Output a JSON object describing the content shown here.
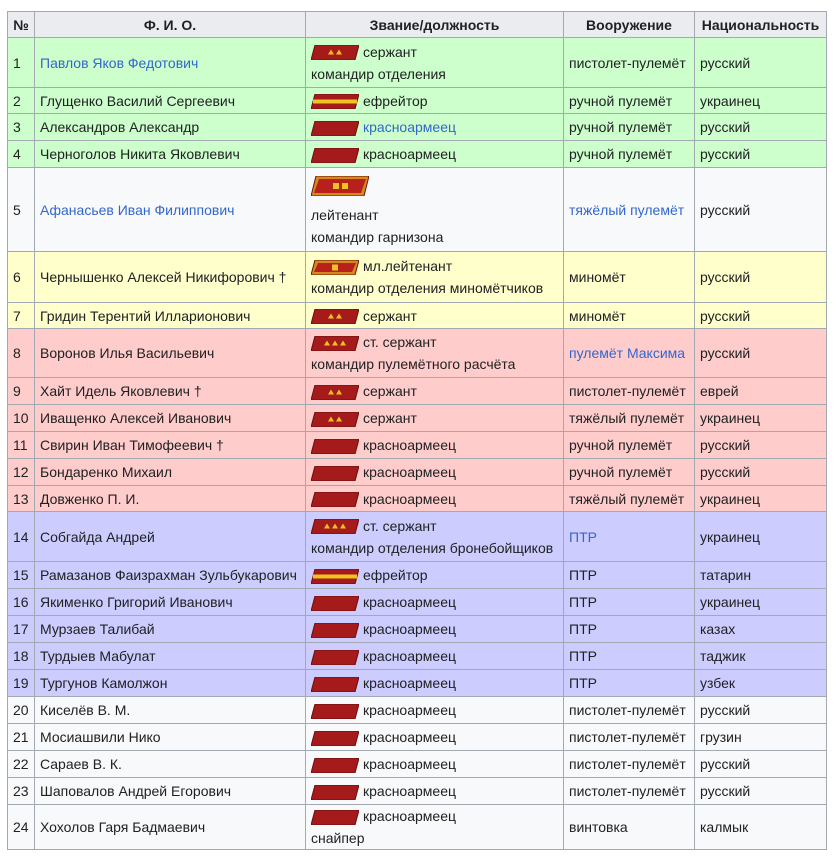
{
  "table": {
    "header": [
      "№",
      "Ф. И. О.",
      "Звание/должность",
      "Вооружение",
      "Национальность"
    ],
    "rows": [
      {
        "n": 1,
        "name": "Павлов Яков Федотович",
        "rank": "сержант",
        "post": "командир отделения",
        "weapon": "пистолет-пулемёт",
        "nation": "русский",
        "color": "#cfc"
      },
      {
        "n": 2,
        "name": "Глущенко Василий Сергеевич",
        "rank": "ефрейтор",
        "weapon": "ручной пулемёт",
        "nation": "украинец",
        "color": "#cfc"
      },
      {
        "n": 3,
        "name": "Александров Александр",
        "rank": "красноармеец",
        "weapon": "ручной пулемёт",
        "nation": "русский",
        "color": "#cfc"
      },
      {
        "n": 4,
        "name": "Черноголов Никита Яковлевич",
        "rank": "красноармеец",
        "weapon": "ручной пулемёт",
        "nation": "русский",
        "color": "#cfc"
      },
      {
        "n": 5,
        "name": "Афанасьев Иван Филиппович",
        "rank": "лейтенант",
        "post": "командир гарнизона",
        "weapon": "тяжёлый пулемёт",
        "nation": "русский",
        "color": "#f8f9fa"
      },
      {
        "n": 6,
        "name": "Чернышенко Алексей Никифорович †",
        "rank": "мл.лейтенант",
        "post": "командир отделения миномётчиков",
        "weapon": "миномёт",
        "nation": "русский",
        "color": "#ffc"
      },
      {
        "n": 7,
        "name": "Гридин Терентий Илларионович",
        "rank": "сержант",
        "weapon": "миномёт",
        "nation": "русский",
        "color": "#ffc"
      },
      {
        "n": 8,
        "name": "Воронов Илья Васильевич",
        "rank": "ст. сержант",
        "post": "командир пулемётного расчёта",
        "weapon": "пулемёт Максима",
        "nation": "русский",
        "color": "#fcc"
      },
      {
        "n": 9,
        "name": "Хайт Идель Яковлевич †",
        "rank": "сержант",
        "weapon": "пистолет-пулемёт",
        "nation": "еврей",
        "color": "#fcc"
      },
      {
        "n": 10,
        "name": "Иващенко Алексей Иванович",
        "rank": "сержант",
        "weapon": "тяжёлый пулемёт",
        "nation": "украинец",
        "color": "#fcc"
      },
      {
        "n": 11,
        "name": "Свирин Иван Тимофеевич †",
        "rank": "красноармеец",
        "weapon": "ручной пулемёт",
        "nation": "русский",
        "color": "#fcc"
      },
      {
        "n": 12,
        "name": "Бондаренко Михаил",
        "rank": "красноармеец",
        "weapon": "ручной пулемёт",
        "nation": "русский",
        "color": "#fcc"
      },
      {
        "n": 13,
        "name": "Довженко П. И.",
        "rank": "красноармеец",
        "weapon": "тяжёлый пулемёт",
        "nation": "украинец",
        "color": "#fcc"
      },
      {
        "n": 14,
        "name": "Собгайда Андрей",
        "rank": "ст. сержант",
        "post": "командир отделения бронебойщиков",
        "weapon": "ПТР",
        "nation": "украинец",
        "color": "#ccf"
      },
      {
        "n": 15,
        "name": "Рамазанов Фаизрахман Зульбукарович",
        "rank": "ефрейтор",
        "weapon": "ПТР",
        "nation": "татарин",
        "color": "#ccf"
      },
      {
        "n": 16,
        "name": "Якименко Григорий Иванович",
        "rank": "красноармеец",
        "weapon": "ПТР",
        "nation": "украинец",
        "color": "#ccf"
      },
      {
        "n": 17,
        "name": "Мурзаев Талибай",
        "rank": "красноармеец",
        "weapon": "ПТР",
        "nation": "казах",
        "color": "#ccf"
      },
      {
        "n": 18,
        "name": "Турдыев Мабулат",
        "rank": "красноармеец",
        "weapon": "ПТР",
        "nation": "таджик",
        "color": "#ccf"
      },
      {
        "n": 19,
        "name": "Тургунов Камолжон",
        "rank": "красноармеец",
        "weapon": "ПТР",
        "nation": "узбек",
        "color": "#ccf"
      },
      {
        "n": 20,
        "name": "Киселёв В. М.",
        "rank": "красноармеец",
        "weapon": "пистолет-пулемёт",
        "nation": "русский",
        "color": "#f8f9fa"
      },
      {
        "n": 21,
        "name": "Мосиашвили Нико",
        "rank": "красноармеец",
        "weapon": "пистолет-пулемёт",
        "nation": "грузин",
        "color": "#f8f9fa"
      },
      {
        "n": 22,
        "name": "Сараев В. К.",
        "rank": "красноармеец",
        "weapon": "пистолет-пулемёт",
        "nation": "русский",
        "color": "#f8f9fa"
      },
      {
        "n": 23,
        "name": "Шаповалов Андрей Егорович",
        "rank": "красноармеец",
        "weapon": "пистолет-пулемёт",
        "nation": "русский",
        "color": "#f8f9fa"
      },
      {
        "n": 24,
        "name": "Хохолов Гаря Бадмаевич",
        "rank": "красноармеец",
        "post": "снайпер",
        "weapon": "винтовка",
        "nation": "калмык",
        "color": "#f8f9fa"
      }
    ]
  }
}
